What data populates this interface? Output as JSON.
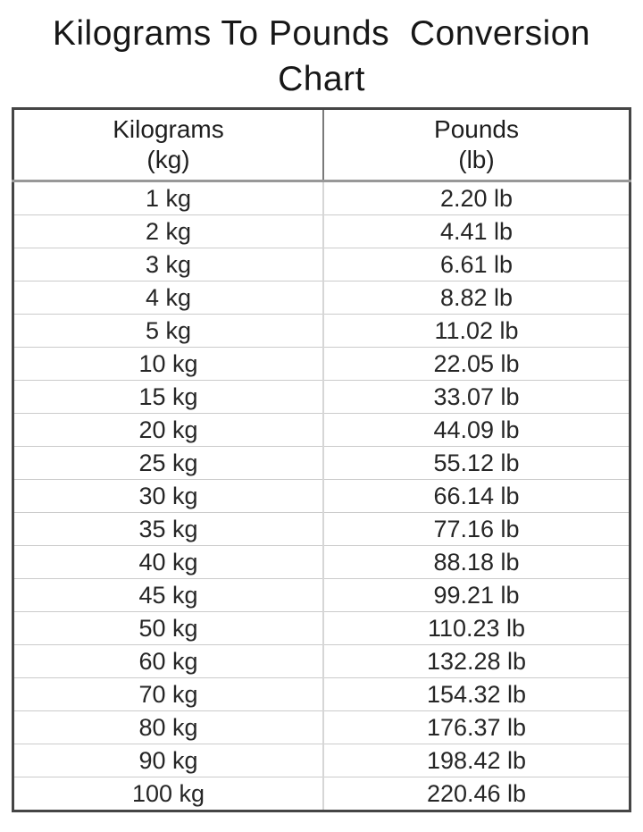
{
  "title": {
    "line1": "Kilograms To Pounds  Conversion",
    "line2": "Chart"
  },
  "table": {
    "header": {
      "col1": {
        "line1": "Kilograms",
        "line2": "(kg)"
      },
      "col2": {
        "line1": "Pounds",
        "line2": "(lb)"
      }
    },
    "rows": [
      {
        "kg": "1 kg",
        "lb": "2.20 lb"
      },
      {
        "kg": "2 kg",
        "lb": "4.41 lb"
      },
      {
        "kg": "3 kg",
        "lb": "6.61 lb"
      },
      {
        "kg": "4 kg",
        "lb": "8.82 lb"
      },
      {
        "kg": "5 kg",
        "lb": "11.02 lb"
      },
      {
        "kg": "10 kg",
        "lb": "22.05 lb"
      },
      {
        "kg": "15 kg",
        "lb": "33.07 lb"
      },
      {
        "kg": "20 kg",
        "lb": "44.09 lb"
      },
      {
        "kg": "25 kg",
        "lb": "55.12 lb"
      },
      {
        "kg": "30 kg",
        "lb": "66.14 lb"
      },
      {
        "kg": "35 kg",
        "lb": "77.16 lb"
      },
      {
        "kg": "40 kg",
        "lb": "88.18 lb"
      },
      {
        "kg": "45 kg",
        "lb": "99.21 lb"
      },
      {
        "kg": "50 kg",
        "lb": "110.23 lb"
      },
      {
        "kg": "60 kg",
        "lb": "132.28 lb"
      },
      {
        "kg": "70 kg",
        "lb": "154.32 lb"
      },
      {
        "kg": "80 kg",
        "lb": "176.37 lb"
      },
      {
        "kg": "90 kg",
        "lb": "198.42 lb"
      },
      {
        "kg": "100 kg",
        "lb": "220.46 lb"
      }
    ]
  },
  "colors": {
    "background": "#ffffff",
    "text": "#1e1e1e",
    "table_outer_border": "#454545",
    "header_underline": "#989898",
    "header_divider": "#7a7a7a",
    "body_gridline": "#cbcbcb"
  },
  "chart_data": {
    "type": "table",
    "title": "Kilograms To Pounds Conversion Chart",
    "columns": [
      "Kilograms (kg)",
      "Pounds (lb)"
    ],
    "kg_values": [
      1,
      2,
      3,
      4,
      5,
      10,
      15,
      20,
      25,
      30,
      35,
      40,
      45,
      50,
      60,
      70,
      80,
      90,
      100
    ],
    "lb_values": [
      2.2,
      4.41,
      6.61,
      8.82,
      11.02,
      22.05,
      33.07,
      44.09,
      55.12,
      66.14,
      77.16,
      88.18,
      99.21,
      110.23,
      132.28,
      154.32,
      176.37,
      198.42,
      220.46
    ]
  }
}
